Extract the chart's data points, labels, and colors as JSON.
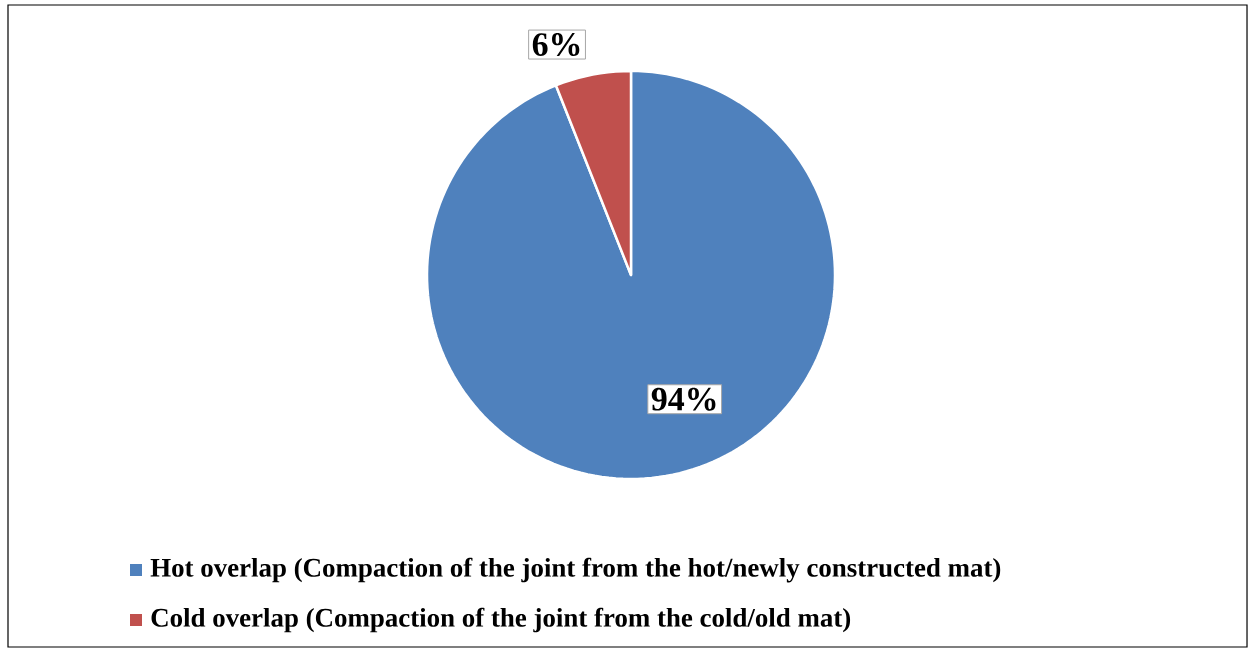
{
  "chart_data": {
    "type": "pie",
    "categories": [
      "Hot overlap (Compaction of the joint from the hot/newly constructed mat)",
      "Cold overlap (Compaction of the joint from the cold/old mat)"
    ],
    "values": [
      94,
      6
    ],
    "colors": [
      "#4f81bd",
      "#c0504d"
    ],
    "value_labels": [
      "94%",
      "6%"
    ],
    "legend": "bottom"
  }
}
